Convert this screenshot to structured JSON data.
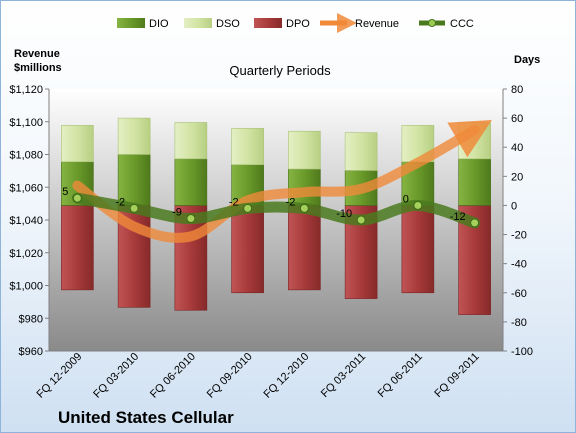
{
  "chart_data": {
    "type": "bar",
    "title": "Quarterly Periods",
    "company": "United States Cellular",
    "left_axis_label_line1": "Revenue",
    "left_axis_label_line2": "$millions",
    "right_axis_label": "Days",
    "categories": [
      "FQ 12-2009",
      "FQ 03-2010",
      "FQ 06-2010",
      "FQ 09-2010",
      "FQ 12-2010",
      "FQ 03-2011",
      "FQ 06-2011",
      "FQ 09-2011"
    ],
    "left_ylim": [
      960,
      1120
    ],
    "left_ticks": [
      "$960",
      "$980",
      "$1,000",
      "$1,020",
      "$1,040",
      "$1,060",
      "$1,080",
      "$1,100",
      "$1,120"
    ],
    "right_ylim": [
      -100,
      80
    ],
    "right_ticks": [
      "-100",
      "-80",
      "-60",
      "-40",
      "-20",
      "0",
      "20",
      "40",
      "60",
      "80"
    ],
    "series": [
      {
        "name": "DIO",
        "axis": "right",
        "kind": "stacked-bar",
        "color": "#6a9a2a",
        "values": [
          30,
          35,
          32,
          28,
          25,
          24,
          30,
          32
        ]
      },
      {
        "name": "DSO",
        "axis": "right",
        "kind": "stacked-bar",
        "color": "#d2e4a4",
        "values": [
          25,
          25,
          25,
          25,
          26,
          26,
          25,
          25
        ]
      },
      {
        "name": "DPO",
        "axis": "right",
        "kind": "negative-bar",
        "color": "#a83a3a",
        "values": [
          -58,
          -70,
          -72,
          -60,
          -58,
          -64,
          -60,
          -75
        ]
      },
      {
        "name": "Revenue",
        "axis": "left",
        "kind": "line",
        "color": "#f08a3a",
        "values": [
          1061,
          1036,
          1030,
          1052,
          1057,
          1059,
          1075,
          1095
        ]
      },
      {
        "name": "CCC",
        "axis": "right",
        "kind": "line",
        "color": "#4a7a1e",
        "values": [
          5,
          -2,
          -9,
          -2,
          -2,
          -10,
          0,
          -12
        ]
      }
    ],
    "ccc_labels": [
      "5",
      "-2",
      "-9",
      "-2",
      "-2",
      "-10",
      "0",
      "-12"
    ],
    "legend": [
      "DIO",
      "DSO",
      "DPO",
      "Revenue",
      "CCC"
    ],
    "legend_position": "top",
    "grid": false
  }
}
